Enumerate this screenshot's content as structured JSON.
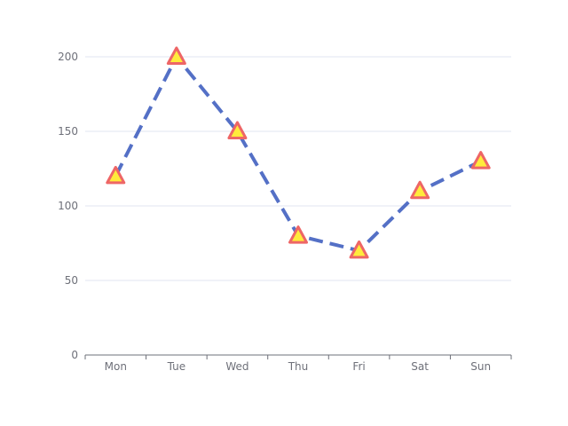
{
  "chart_data": {
    "type": "line",
    "categories": [
      "Mon",
      "Tue",
      "Wed",
      "Thu",
      "Fri",
      "Sat",
      "Sun"
    ],
    "series": [
      {
        "values": [
          120,
          200,
          150,
          80,
          70,
          110,
          130
        ]
      }
    ],
    "ylim": [
      0,
      200
    ],
    "yticks": [
      0,
      50,
      100,
      150,
      200
    ],
    "grid": true,
    "line_style": "dashed",
    "marker": "triangle",
    "colors": {
      "line": "#5470c6",
      "marker_fill": "#ffeb3b",
      "marker_stroke": "#ee6666",
      "grid": "#e0e6f1",
      "axis": "#6e7079",
      "tick_text": "#6e7079"
    }
  }
}
